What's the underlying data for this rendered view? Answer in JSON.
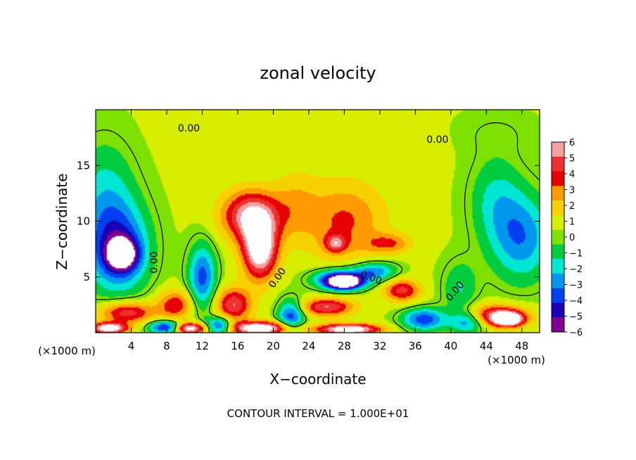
{
  "chart_data": {
    "type": "heatmap",
    "title": "zonal velocity",
    "xlabel": "X−coordinate",
    "ylabel": "Z−coordinate",
    "x_unit_left": "(×1000 m)",
    "x_unit_right": "(×1000 m)",
    "footer": "CONTOUR INTERVAL = 1.000E+01",
    "xlim": [
      0,
      50
    ],
    "ylim": [
      0,
      20
    ],
    "x_ticks": [
      4,
      8,
      12,
      16,
      20,
      24,
      28,
      32,
      36,
      40,
      44,
      48
    ],
    "y_ticks": [
      5,
      10,
      15
    ],
    "grid": false,
    "colorbar": {
      "ticks": [
        "6",
        "5",
        "4",
        "3",
        "2",
        "1",
        "0",
        "−1",
        "−2",
        "−3",
        "−4",
        "−5",
        "−6"
      ],
      "colors": [
        "#f4a0a0",
        "#ee3030",
        "#e60000",
        "#ff9a00",
        "#f7d000",
        "#d7ee00",
        "#7ee000",
        "#00cc40",
        "#00e6d2",
        "#0098ee",
        "#0040f0",
        "#1a00b4",
        "#800090"
      ],
      "placement": "right",
      "vmin": -6,
      "vmax": 6
    },
    "contour_labels": [
      "0.00",
      "0.00",
      "0.00",
      "0.00",
      "0.00",
      "0.00"
    ],
    "field": {
      "background": 0.6,
      "blobs": [
        {
          "x": 17.5,
          "z": 10.5,
          "sx": 3.2,
          "sz": 2.2,
          "v": 5.5
        },
        {
          "x": 18.5,
          "z": 7.5,
          "sx": 1.9,
          "sz": 2.6,
          "v": 7.0
        },
        {
          "x": 28.0,
          "z": 10.0,
          "sx": 4.5,
          "sz": 3.5,
          "v": 2.8
        },
        {
          "x": 27.0,
          "z": 8.0,
          "sx": 1.2,
          "sz": 0.8,
          "v": 3.5
        },
        {
          "x": 33.0,
          "z": 8.0,
          "sx": 2.5,
          "sz": 0.9,
          "v": 2.5
        },
        {
          "x": 22.5,
          "z": 11.5,
          "sx": 2.5,
          "sz": 3.0,
          "v": 1.5
        },
        {
          "x": 2.5,
          "z": 7.5,
          "sx": 3.5,
          "sz": 4.0,
          "v": -4.8
        },
        {
          "x": 3.0,
          "z": 7.0,
          "sx": 1.7,
          "sz": 1.4,
          "v": -5.5
        },
        {
          "x": 1.0,
          "z": 12.5,
          "sx": 3.5,
          "sz": 5.0,
          "v": -2.2
        },
        {
          "x": 48.0,
          "z": 8.5,
          "sx": 3.5,
          "sz": 4.0,
          "v": -3.6
        },
        {
          "x": 45.0,
          "z": 12.0,
          "sx": 3.0,
          "sz": 4.0,
          "v": -2.0
        },
        {
          "x": 12.0,
          "z": 5.0,
          "sx": 1.6,
          "sz": 3.0,
          "v": -4.2
        },
        {
          "x": 27.5,
          "z": 4.8,
          "sx": 3.0,
          "sz": 0.9,
          "v": -5.5
        },
        {
          "x": 28.0,
          "z": 4.5,
          "sx": 1.8,
          "sz": 0.6,
          "v": -7.0
        },
        {
          "x": 31.5,
          "z": 5.5,
          "sx": 2.5,
          "sz": 0.9,
          "v": -3.5
        },
        {
          "x": 41.0,
          "z": 4.0,
          "sx": 2.0,
          "sz": 2.5,
          "v": -2.0
        },
        {
          "x": 3.5,
          "z": 1.8,
          "sx": 3.0,
          "sz": 1.0,
          "v": 4.5
        },
        {
          "x": 9.0,
          "z": 2.5,
          "sx": 2.0,
          "sz": 1.3,
          "v": 3.5
        },
        {
          "x": 15.5,
          "z": 2.5,
          "sx": 2.0,
          "sz": 1.5,
          "v": 4.5
        },
        {
          "x": 26.0,
          "z": 2.3,
          "sx": 3.0,
          "sz": 0.8,
          "v": 4.5
        },
        {
          "x": 34.5,
          "z": 3.8,
          "sx": 2.0,
          "sz": 1.0,
          "v": 4.0
        },
        {
          "x": 45.0,
          "z": 1.5,
          "sx": 3.5,
          "sz": 1.0,
          "v": 5.0
        },
        {
          "x": 46.5,
          "z": 1.2,
          "sx": 1.6,
          "sz": 0.6,
          "v": 6.5
        },
        {
          "x": 1.5,
          "z": 0.4,
          "sx": 2.0,
          "sz": 0.5,
          "v": 7.0
        },
        {
          "x": 10.5,
          "z": 0.4,
          "sx": 1.8,
          "sz": 0.5,
          "v": 7.0
        },
        {
          "x": 18.5,
          "z": 0.4,
          "sx": 3.5,
          "sz": 0.6,
          "v": 7.0
        },
        {
          "x": 28.5,
          "z": 0.3,
          "sx": 3.5,
          "sz": 0.5,
          "v": 7.0
        },
        {
          "x": 8.0,
          "z": 0.5,
          "sx": 2.0,
          "sz": 0.6,
          "v": -5.5
        },
        {
          "x": 14.0,
          "z": 0.6,
          "sx": 1.5,
          "sz": 0.8,
          "v": -5.0
        },
        {
          "x": 22.0,
          "z": 1.5,
          "sx": 1.5,
          "sz": 1.5,
          "v": -4.5
        },
        {
          "x": 37.0,
          "z": 1.2,
          "sx": 2.5,
          "sz": 1.0,
          "v": -4.5
        },
        {
          "x": 42.0,
          "z": 1.0,
          "sx": 2.0,
          "sz": 1.0,
          "v": -4.0
        },
        {
          "x": 25.0,
          "z": 17.5,
          "sx": 12.0,
          "sz": 2.0,
          "v": 0.4
        },
        {
          "x": 45.0,
          "z": 18.0,
          "sx": 5.0,
          "sz": 2.0,
          "v": -0.6
        }
      ]
    }
  }
}
